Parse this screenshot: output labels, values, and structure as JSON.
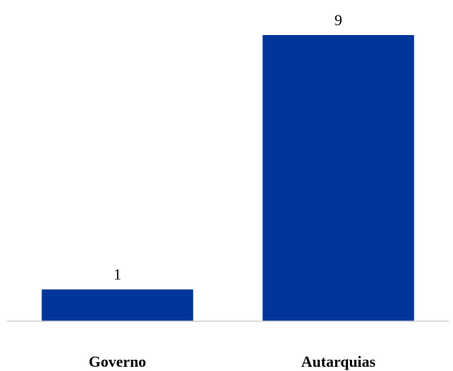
{
  "chart_data": {
    "type": "bar",
    "categories": [
      "Governo",
      "Autarquias"
    ],
    "values": [
      1,
      9
    ],
    "ylim": [
      0,
      9
    ],
    "title": "",
    "xlabel": "",
    "ylabel": "",
    "grid": false,
    "legend": "none",
    "bar_color": "#00369b",
    "axis_color": "#d0d0d0"
  }
}
